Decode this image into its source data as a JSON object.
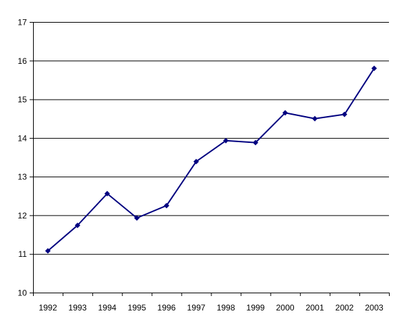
{
  "chart_data": {
    "type": "line",
    "title": "",
    "xlabel": "",
    "ylabel": "",
    "categories": [
      "1992",
      "1993",
      "1994",
      "1995",
      "1996",
      "1997",
      "1998",
      "1999",
      "2000",
      "2001",
      "2002",
      "2003"
    ],
    "series": [
      {
        "values": [
          11.08,
          11.74,
          12.56,
          11.93,
          12.25,
          13.39,
          13.93,
          13.88,
          14.65,
          14.5,
          14.61,
          15.8
        ]
      }
    ],
    "ylim": [
      10,
      17
    ],
    "yticks": [
      10,
      11,
      12,
      13,
      14,
      15,
      16,
      17
    ],
    "grid": true,
    "legend": "none",
    "colors": {
      "line": "#000080",
      "marker": "#000080",
      "grid": "#000000",
      "axis": "#000000"
    }
  }
}
